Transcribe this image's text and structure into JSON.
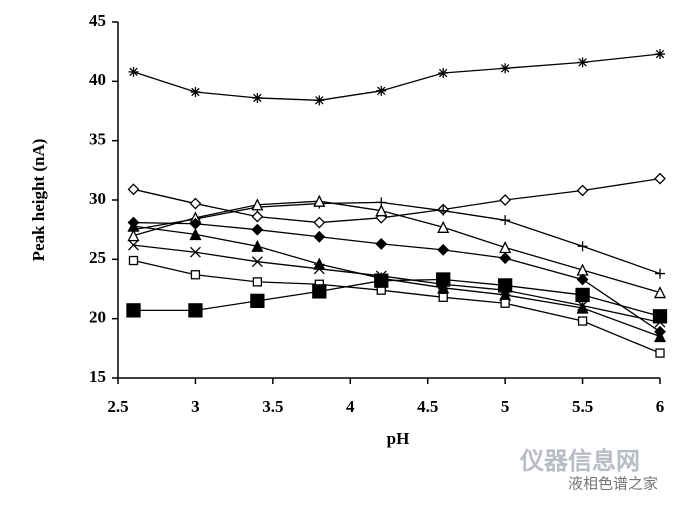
{
  "chart_data": {
    "type": "line",
    "x_label": "pH",
    "y_label": "Peak height (nA)",
    "x": [
      2.6,
      3.0,
      3.4,
      3.8,
      4.2,
      4.6,
      5.0,
      5.5,
      6.0
    ],
    "xlim": [
      2.5,
      6
    ],
    "xticks": [
      2.5,
      3,
      3.5,
      4,
      4.5,
      5,
      5.5,
      6
    ],
    "ylim": [
      15,
      45
    ],
    "yticks": [
      15,
      20,
      25,
      30,
      35,
      40,
      45
    ],
    "series": [
      {
        "marker": "asterisk",
        "color": "#000000",
        "values": [
          40.8,
          39.1,
          38.6,
          38.4,
          39.2,
          40.7,
          41.1,
          41.6,
          42.3
        ]
      },
      {
        "marker": "open-diamond",
        "color": "#000000",
        "values": [
          30.9,
          29.7,
          28.6,
          28.1,
          28.5,
          29.2,
          30.0,
          30.8,
          31.8
        ]
      },
      {
        "marker": "plus",
        "color": "#000000",
        "values": [
          27.5,
          28.4,
          29.4,
          29.7,
          29.8,
          29.1,
          28.3,
          26.1,
          23.8
        ]
      },
      {
        "marker": "open-triangle",
        "color": "#000000",
        "values": [
          27.0,
          28.5,
          29.6,
          29.9,
          29.1,
          27.7,
          26.0,
          24.1,
          22.2
        ]
      },
      {
        "marker": "filled-diamond",
        "color": "#000000",
        "values": [
          28.1,
          28.0,
          27.5,
          26.9,
          26.3,
          25.8,
          25.1,
          23.3,
          18.9
        ]
      },
      {
        "marker": "filled-triangle",
        "color": "#000000",
        "values": [
          27.8,
          27.1,
          26.1,
          24.6,
          23.4,
          22.6,
          22.0,
          20.9,
          18.5
        ]
      },
      {
        "marker": "cross",
        "color": "#000000",
        "values": [
          26.2,
          25.6,
          24.8,
          24.2,
          23.6,
          22.9,
          22.4,
          21.1,
          19.7
        ]
      },
      {
        "marker": "open-square",
        "color": "#000000",
        "values": [
          24.9,
          23.7,
          23.1,
          22.9,
          22.4,
          21.8,
          21.3,
          19.8,
          17.1
        ]
      },
      {
        "marker": "filled-square",
        "color": "#000000",
        "values": [
          20.7,
          20.7,
          21.5,
          22.3,
          23.2,
          23.3,
          22.8,
          22.0,
          20.2
        ]
      }
    ]
  },
  "watermark": [
    "仪器信息网",
    "液相色谱之家"
  ]
}
